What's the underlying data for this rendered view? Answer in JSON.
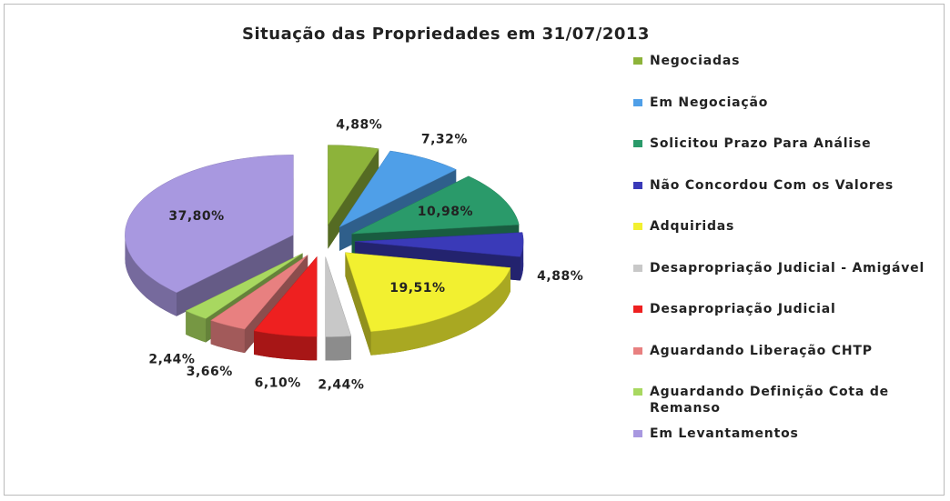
{
  "chart_data": {
    "type": "pie",
    "title": "Situação das Propriedades em 31/07/2013",
    "categories": [
      "Negociadas",
      "Em Negociação",
      "Solicitou Prazo  Para Análise",
      "Não Concordou Com os Valores",
      "Adquiridas",
      "Desapropriação Judicial - Amigável",
      "Desapropriação Judicial",
      "Aguardando Liberação CHTP",
      "Aguardando Definição Cota de Remanso",
      "Em Levantamentos"
    ],
    "values": [
      4.88,
      7.32,
      10.98,
      4.88,
      19.51,
      2.44,
      6.1,
      3.66,
      2.44,
      37.8
    ],
    "value_labels": [
      "4,88%",
      "7,32%",
      "10,98%",
      "4,88%",
      "19,51%",
      "2,44%",
      "6,10%",
      "3,66%",
      "2,44%",
      "37,80%"
    ],
    "colors": [
      "#8db33a",
      "#4f9fe8",
      "#2a9a6a",
      "#3a3ab8",
      "#f2f030",
      "#c8c8c8",
      "#ee2020",
      "#e88080",
      "#a8d860",
      "#a898e0"
    ],
    "legend": "right"
  }
}
